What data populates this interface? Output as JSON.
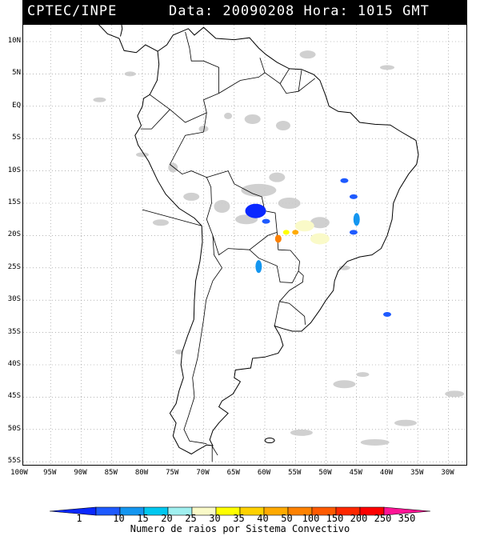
{
  "header": {
    "source": "CPTEC/INPE",
    "datetime": "Data: 20090208 Hora: 1015 GMT"
  },
  "axes": {
    "lat_labels": [
      "10N",
      "5N",
      "EQ",
      "5S",
      "10S",
      "15S",
      "20S",
      "25S",
      "30S",
      "35S",
      "40S",
      "45S",
      "50S",
      "55S"
    ],
    "lat_values": [
      10,
      5,
      0,
      -5,
      -10,
      -15,
      -20,
      -25,
      -30,
      -35,
      -40,
      -45,
      -50,
      -55
    ],
    "lon_labels": [
      "100W",
      "95W",
      "90W",
      "85W",
      "80W",
      "75W",
      "70W",
      "65W",
      "60W",
      "55W",
      "50W",
      "45W",
      "40W",
      "35W",
      "30W"
    ],
    "lon_values": [
      -100,
      -95,
      -90,
      -85,
      -80,
      -75,
      -70,
      -65,
      -60,
      -55,
      -50,
      -45,
      -40,
      -35,
      -30
    ],
    "lon_range": [
      -100,
      -25
    ],
    "lat_range": [
      -56,
      12.5
    ],
    "grid": "dotted"
  },
  "legend": {
    "ticks": [
      "1",
      "10",
      "15",
      "20",
      "25",
      "30",
      "35",
      "40",
      "50",
      "100",
      "150",
      "200",
      "250",
      "350"
    ],
    "colors": [
      "#0a28ff",
      "#1e5aff",
      "#1496f0",
      "#00c8f0",
      "#a0f0f0",
      "#fafac8",
      "#ffff00",
      "#ffd200",
      "#ffaa00",
      "#ff8200",
      "#ff5a00",
      "#ff2800",
      "#ff0000",
      "#ff1496"
    ],
    "caption": "Numero de raios por Sistema Convectivo"
  },
  "colors": {
    "land_outline": "#000000",
    "cloud": "#c8c8c8",
    "background": "#ffffff"
  },
  "lightning_systems": [
    {
      "lon": -61.5,
      "lat": -16.2,
      "count_class": "1"
    },
    {
      "lon": -59.8,
      "lat": -17.8,
      "count_class": "10"
    },
    {
      "lon": -57.8,
      "lat": -20.5,
      "count_class": "100"
    },
    {
      "lon": -56.5,
      "lat": -19.5,
      "count_class": "35"
    },
    {
      "lon": -55.0,
      "lat": -19.5,
      "count_class": "50"
    },
    {
      "lon": -53.5,
      "lat": -18.5,
      "count_class": "30"
    },
    {
      "lon": -51.0,
      "lat": -20.5,
      "count_class": "30"
    },
    {
      "lon": -45.0,
      "lat": -17.5,
      "count_class": "15"
    },
    {
      "lon": -45.5,
      "lat": -19.5,
      "count_class": "10"
    },
    {
      "lon": -47.0,
      "lat": -11.5,
      "count_class": "10"
    },
    {
      "lon": -61.0,
      "lat": -24.8,
      "count_class": "15"
    },
    {
      "lon": -40.0,
      "lat": -32.2,
      "count_class": "10"
    },
    {
      "lon": -45.5,
      "lat": -14.0,
      "count_class": "10"
    }
  ]
}
